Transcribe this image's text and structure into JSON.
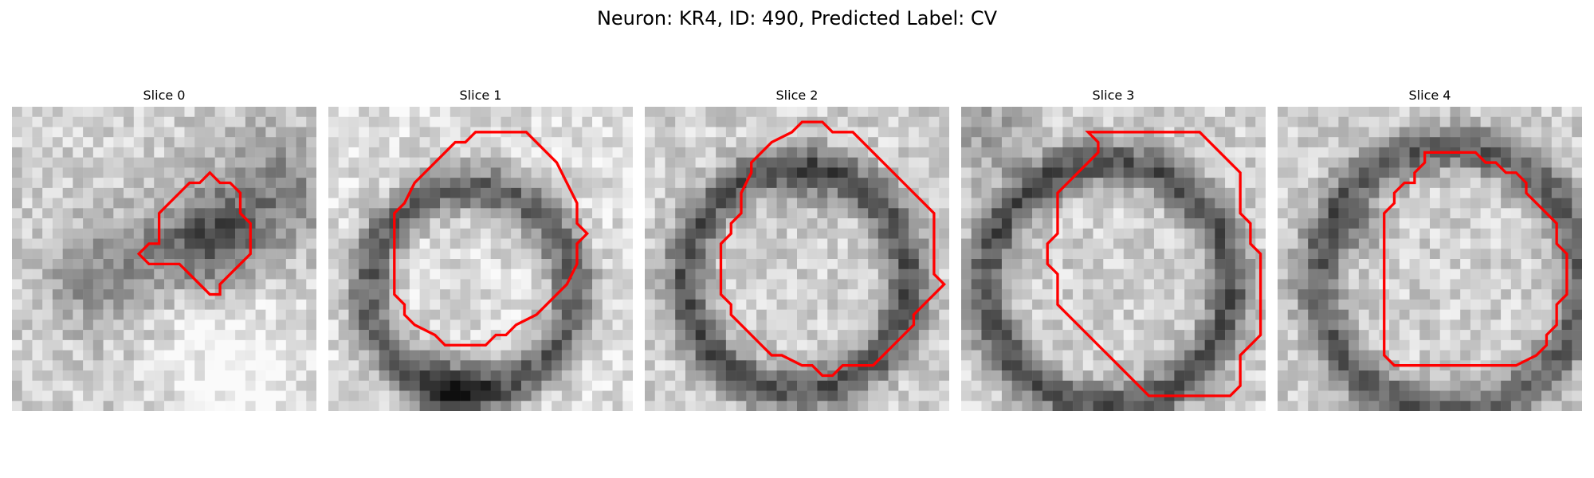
{
  "figure": {
    "title": "Neuron: KR4, ID: 490, Predicted Label: CV"
  },
  "colors": {
    "contour": "#ff0000"
  },
  "panels": [
    {
      "title": "Slice 0",
      "image": "grayscale-microscopy-patch",
      "contour_points": [
        [
          20.5,
          7.5
        ],
        [
          21.5,
          7.5
        ],
        [
          22.5,
          8.5
        ],
        [
          22.5,
          10.5
        ],
        [
          23.5,
          11.5
        ],
        [
          23.5,
          14.5
        ],
        [
          21.5,
          16.5
        ],
        [
          20.5,
          17.5
        ],
        [
          20.5,
          18.5
        ],
        [
          19.5,
          18.5
        ],
        [
          18.5,
          17.5
        ],
        [
          17.5,
          16.5
        ],
        [
          16.5,
          15.5
        ],
        [
          13.5,
          15.5
        ],
        [
          12.5,
          14.5
        ],
        [
          13.5,
          13.5
        ],
        [
          14.5,
          13.5
        ],
        [
          14.5,
          10.5
        ],
        [
          15.5,
          9.5
        ],
        [
          16.5,
          8.5
        ],
        [
          17.5,
          7.5
        ],
        [
          18.5,
          7.5
        ],
        [
          19.5,
          6.5
        ]
      ]
    },
    {
      "title": "Slice 1",
      "image": "grayscale-microscopy-patch",
      "contour_points": [
        [
          13.5,
          3.5
        ],
        [
          14.5,
          2.5
        ],
        [
          19.5,
          2.5
        ],
        [
          20.5,
          3.5
        ],
        [
          21.5,
          4.5
        ],
        [
          22.5,
          5.5
        ],
        [
          23.5,
          7.5
        ],
        [
          24.5,
          9.5
        ],
        [
          24.5,
          11.5
        ],
        [
          25.5,
          12.5
        ],
        [
          24.5,
          13.5
        ],
        [
          24.5,
          15.5
        ],
        [
          23.5,
          17.5
        ],
        [
          21.5,
          19.5
        ],
        [
          20.5,
          20.5
        ],
        [
          18.5,
          21.5
        ],
        [
          17.5,
          22.5
        ],
        [
          16.5,
          22.5
        ],
        [
          15.5,
          23.5
        ],
        [
          11.5,
          23.5
        ],
        [
          10.5,
          22.5
        ],
        [
          8.5,
          21.5
        ],
        [
          7.5,
          20.5
        ],
        [
          7.5,
          19.5
        ],
        [
          6.5,
          18.5
        ],
        [
          6.5,
          10.5
        ],
        [
          7.5,
          9.5
        ],
        [
          8.5,
          7.5
        ],
        [
          9.5,
          6.5
        ],
        [
          11.5,
          4.5
        ],
        [
          12.5,
          3.5
        ]
      ]
    },
    {
      "title": "Slice 2",
      "image": "grayscale-microscopy-patch",
      "contour_points": [
        [
          16.5,
          1.5
        ],
        [
          17.5,
          1.5
        ],
        [
          18.5,
          2.5
        ],
        [
          20.5,
          2.5
        ],
        [
          21.5,
          3.5
        ],
        [
          22.5,
          4.5
        ],
        [
          24.5,
          6.5
        ],
        [
          25.5,
          7.5
        ],
        [
          26.5,
          8.5
        ],
        [
          27.5,
          9.5
        ],
        [
          28.5,
          10.5
        ],
        [
          28.5,
          16.5
        ],
        [
          29.5,
          17.5
        ],
        [
          28.5,
          18.5
        ],
        [
          27.5,
          19.5
        ],
        [
          26.5,
          20.5
        ],
        [
          26.5,
          21.5
        ],
        [
          25.5,
          22.5
        ],
        [
          24.5,
          23.5
        ],
        [
          23.5,
          24.5
        ],
        [
          22.5,
          25.5
        ],
        [
          19.5,
          25.5
        ],
        [
          18.5,
          26.5
        ],
        [
          17.5,
          26.5
        ],
        [
          16.5,
          25.5
        ],
        [
          15.5,
          25.5
        ],
        [
          13.5,
          24.5
        ],
        [
          12.5,
          24.5
        ],
        [
          11.5,
          23.5
        ],
        [
          10.5,
          22.5
        ],
        [
          9.5,
          21.5
        ],
        [
          8.5,
          20.5
        ],
        [
          8.5,
          19.5
        ],
        [
          7.5,
          18.5
        ],
        [
          7.5,
          13.5
        ],
        [
          8.5,
          12.5
        ],
        [
          8.5,
          11.5
        ],
        [
          9.5,
          10.5
        ],
        [
          9.5,
          8.5
        ],
        [
          10.5,
          6.5
        ],
        [
          10.5,
          5.5
        ],
        [
          11.5,
          4.5
        ],
        [
          12.5,
          3.5
        ],
        [
          14.5,
          2.5
        ],
        [
          15.5,
          1.5
        ]
      ]
    },
    {
      "title": "Slice 3",
      "image": "grayscale-microscopy-patch",
      "contour_points": [
        [
          12.5,
          2.5
        ],
        [
          23.5,
          2.5
        ],
        [
          24.5,
          3.5
        ],
        [
          25.5,
          4.5
        ],
        [
          26.5,
          5.5
        ],
        [
          27.5,
          6.5
        ],
        [
          27.5,
          10.5
        ],
        [
          28.5,
          11.5
        ],
        [
          28.5,
          13.5
        ],
        [
          29.5,
          14.5
        ],
        [
          29.5,
          22.5
        ],
        [
          28.5,
          23.5
        ],
        [
          27.5,
          24.5
        ],
        [
          27.5,
          27.5
        ],
        [
          26.5,
          28.5
        ],
        [
          18.5,
          28.5
        ],
        [
          17.5,
          27.5
        ],
        [
          16.5,
          26.5
        ],
        [
          15.5,
          25.5
        ],
        [
          14.5,
          24.5
        ],
        [
          13.5,
          23.5
        ],
        [
          12.5,
          22.5
        ],
        [
          11.5,
          21.5
        ],
        [
          10.5,
          20.5
        ],
        [
          9.5,
          19.5
        ],
        [
          9.5,
          16.5
        ],
        [
          8.5,
          15.5
        ],
        [
          8.5,
          13.5
        ],
        [
          9.5,
          12.5
        ],
        [
          9.5,
          8.5
        ],
        [
          10.5,
          7.5
        ],
        [
          11.5,
          6.5
        ],
        [
          12.5,
          5.5
        ],
        [
          13.5,
          4.5
        ],
        [
          13.5,
          3.5
        ]
      ]
    },
    {
      "title": "Slice 4",
      "image": "grayscale-microscopy-patch",
      "contour_points": [
        [
          14.5,
          4.5
        ],
        [
          19.5,
          4.5
        ],
        [
          20.5,
          5.5
        ],
        [
          21.5,
          5.5
        ],
        [
          22.5,
          6.5
        ],
        [
          23.5,
          6.5
        ],
        [
          24.5,
          7.5
        ],
        [
          24.5,
          8.5
        ],
        [
          25.5,
          9.5
        ],
        [
          26.5,
          10.5
        ],
        [
          27.5,
          11.5
        ],
        [
          27.5,
          13.5
        ],
        [
          28.5,
          14.5
        ],
        [
          28.5,
          18.5
        ],
        [
          27.5,
          19.5
        ],
        [
          27.5,
          21.5
        ],
        [
          26.5,
          22.5
        ],
        [
          26.5,
          23.5
        ],
        [
          25.5,
          24.5
        ],
        [
          23.5,
          25.5
        ],
        [
          11.5,
          25.5
        ],
        [
          10.5,
          24.5
        ],
        [
          10.5,
          10.5
        ],
        [
          11.5,
          9.5
        ],
        [
          11.5,
          8.5
        ],
        [
          12.5,
          7.5
        ],
        [
          13.5,
          7.5
        ],
        [
          13.5,
          6.5
        ],
        [
          14.5,
          5.5
        ]
      ]
    }
  ]
}
